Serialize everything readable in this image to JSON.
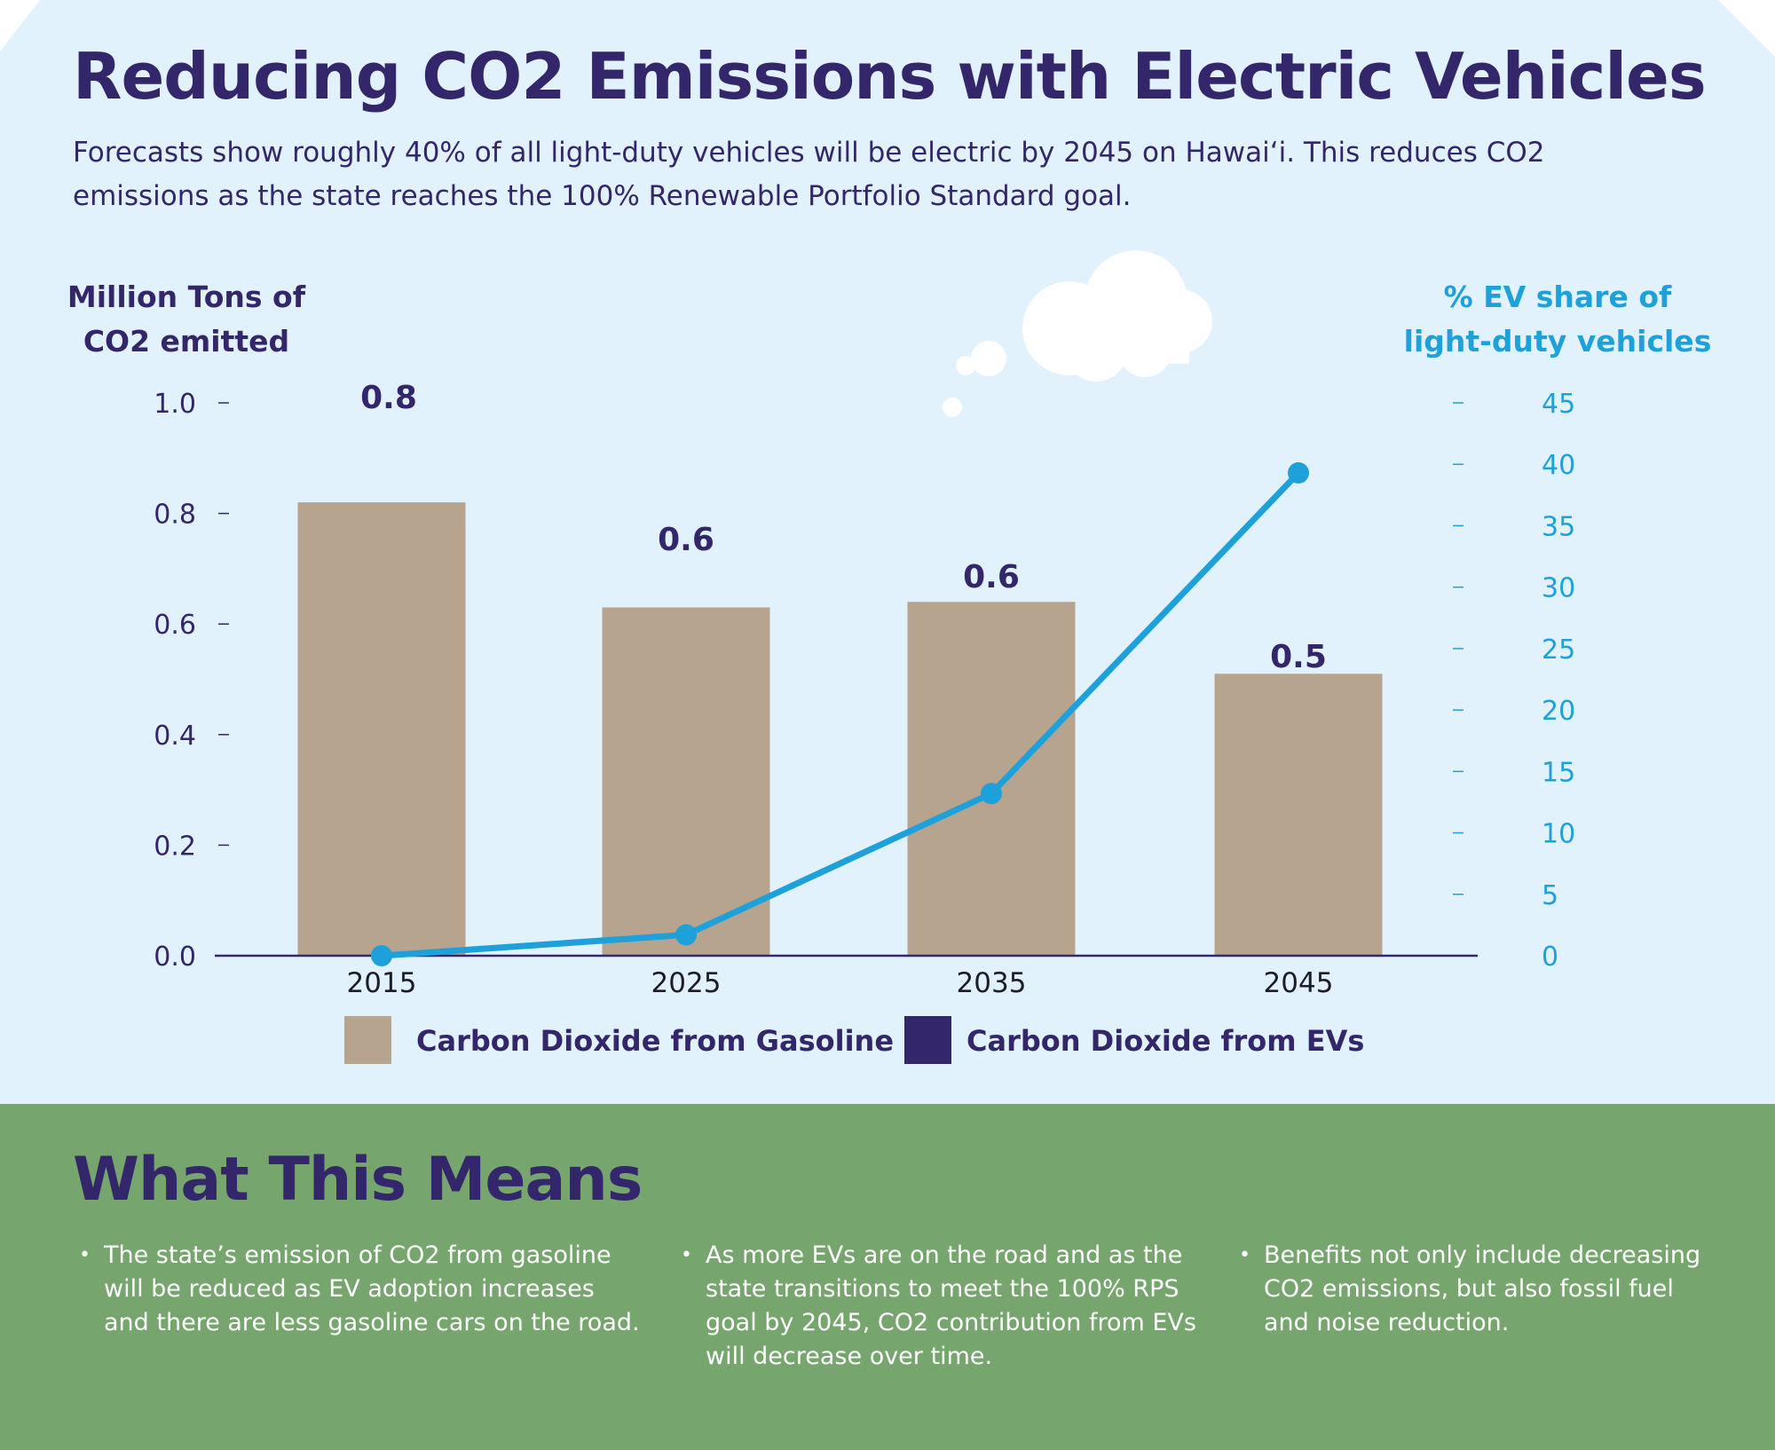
{
  "title": "Reducing CO2 Emissions with Electric Vehicles",
  "subtitle": "Forecasts show roughly 40% of all light-duty vehicles will be electric by 2045 on Hawai‘i. This reduces CO2 emissions as the state reaches the 100% Renewable Portfolio Standard goal.",
  "colors": {
    "title": "#33266a",
    "background": "#e1f2fc",
    "gasoline": "#b6a48e",
    "ev": "#33266a",
    "ev_share": "#1ea1db",
    "bottom_panel": "#76a56e"
  },
  "chart_data": {
    "type": "bar+line",
    "categories": [
      "2015",
      "2025",
      "2035",
      "2045"
    ],
    "left_axis": {
      "label_line1": "Million Tons of",
      "label_line2": "CO2 emitted",
      "range": [
        0,
        1.0
      ],
      "ticks": [
        "0.0",
        "0.2",
        "0.4",
        "0.6",
        "0.8",
        "1.0"
      ]
    },
    "right_axis": {
      "label_line1": "% EV share of",
      "label_line2": "light-duty vehicles",
      "range": [
        0,
        45
      ],
      "ticks": [
        "0",
        "5",
        "10",
        "15",
        "20",
        "25",
        "30",
        "35",
        "40",
        "45"
      ]
    },
    "series": [
      {
        "name": "Carbon Dioxide from Gasoline",
        "type": "bar",
        "axis": "left",
        "values": [
          0.82,
          0.63,
          0.64,
          0.51
        ],
        "data_labels": [
          "0.8",
          "0.6",
          "0.6",
          "0.5"
        ]
      },
      {
        "name": "Carbon Dioxide from EVs",
        "type": "bar",
        "axis": "left",
        "values": [
          0,
          0,
          0,
          0
        ]
      },
      {
        "type": "line",
        "axis": "right",
        "values": [
          0,
          1.7,
          13.2,
          39.3
        ]
      }
    ],
    "legend": [
      "Carbon Dioxide from Gasoline",
      "Carbon Dioxide from EVs"
    ],
    "legend_position": "bottom",
    "grid": false
  },
  "means": {
    "title": "What This Means",
    "bullets": [
      "The state’s emission of CO2 from gasoline will be reduced as EV adoption increases and there are less gasoline cars on the road.",
      "As more EVs are on the road and as the state transitions to meet the 100% RPS goal by 2045, CO2 contribution from EVs will decrease over time.",
      "Benefits not only include decreasing CO2 emissions, but also fossil fuel and noise reduction."
    ]
  }
}
